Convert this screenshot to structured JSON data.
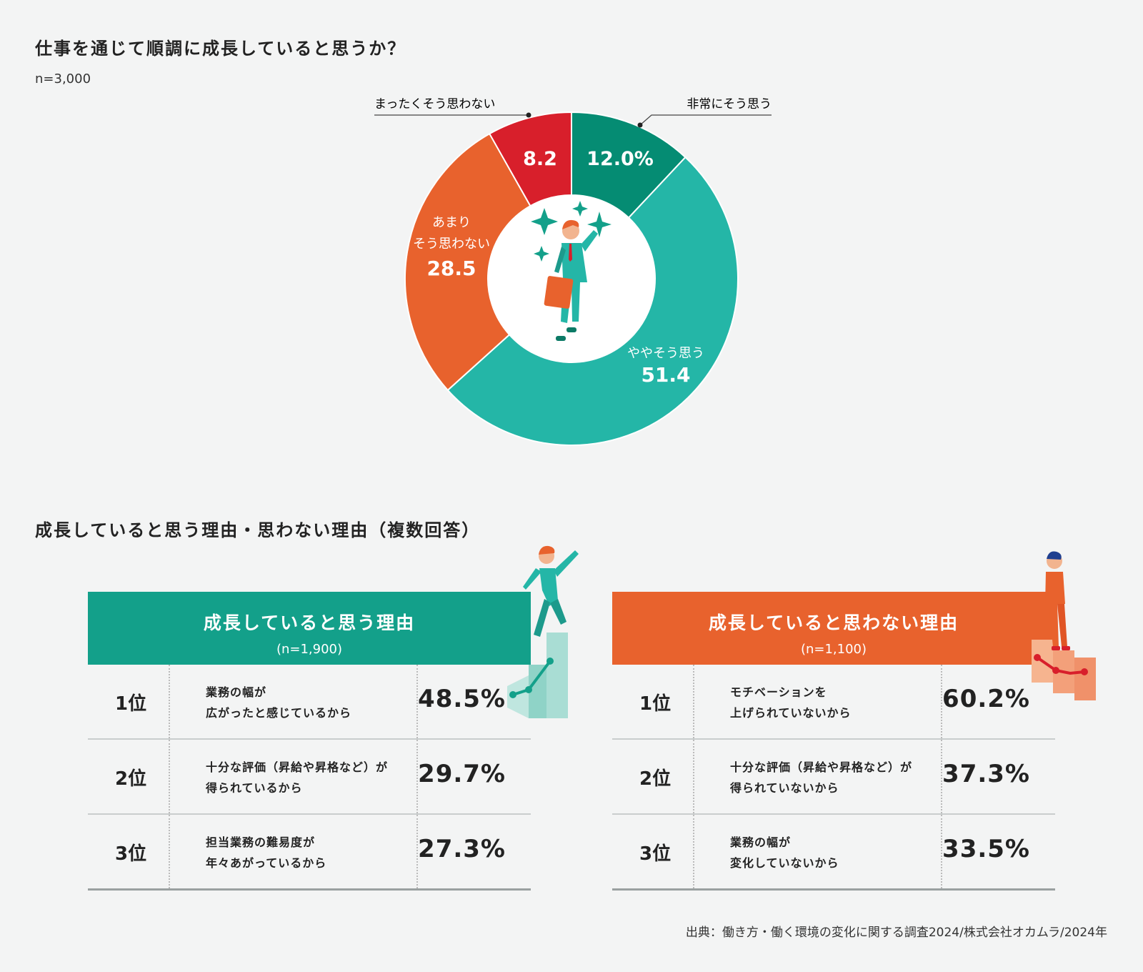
{
  "title": "仕事を通じて順調に成長していると思うか？",
  "n_total": "n=3,000",
  "section2_title": "成長していると思う理由・思わない理由（複数回答）",
  "source": "出典：働き方・働く環境の変化に関する調査2024/株式会社オカムラ/2024年",
  "chart_data": {
    "type": "pie",
    "variant": "donut",
    "slices": [
      {
        "label": "非常にそう思う",
        "value": 12.0,
        "display": "12.0%",
        "color": "#058c73"
      },
      {
        "label": "ややそう思う",
        "value": 51.4,
        "display": "51.4",
        "color": "#24b6a7"
      },
      {
        "label": "あまりそう思わない",
        "value": 28.5,
        "display": "28.5",
        "color": "#e8622d"
      },
      {
        "label": "まったくそう思わない",
        "value": 8.2,
        "display": "8.2",
        "color": "#d81f2b"
      }
    ]
  },
  "inner_labels": {
    "slight_yes": "ややそう思う",
    "slight_no_line1": "あまり",
    "slight_no_line2": "そう思わない"
  },
  "panels": [
    {
      "title": "成長していると思う理由",
      "n": "(n=1,900)",
      "color": "#13a08a",
      "rows": [
        {
          "rank": "1位",
          "reason1": "業務の幅が",
          "reason2": "広がったと感じているから",
          "pct": "48.5%"
        },
        {
          "rank": "2位",
          "reason1": "十分な評価（昇給や昇格など）が",
          "reason2": "得られているから",
          "pct": "29.7%"
        },
        {
          "rank": "3位",
          "reason1": "担当業務の難易度が",
          "reason2": "年々あがっているから",
          "pct": "27.3%"
        }
      ]
    },
    {
      "title": "成長していると思わない理由",
      "n": "(n=1,100)",
      "color": "#e8622d",
      "rows": [
        {
          "rank": "1位",
          "reason1": "モチベーションを",
          "reason2": "上げられていないから",
          "pct": "60.2%"
        },
        {
          "rank": "2位",
          "reason1": "十分な評価（昇給や昇格など）が",
          "reason2": "得られていないから",
          "pct": "37.3%"
        },
        {
          "rank": "3位",
          "reason1": "業務の幅が",
          "reason2": "変化していないから",
          "pct": "33.5%"
        }
      ]
    }
  ]
}
